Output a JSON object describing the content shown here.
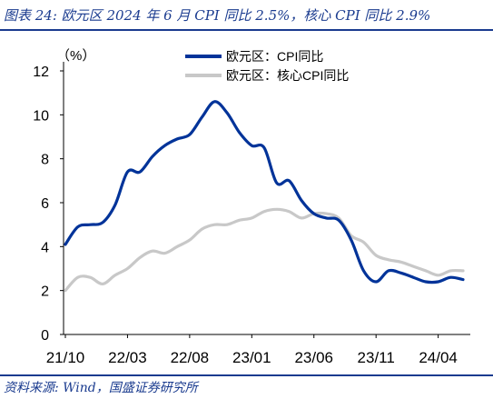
{
  "title": "图表 24: 欧元区 2024 年 6 月 CPI 同比 2.5%，核心 CPI 同比 2.9%",
  "source": "资料来源: Wind，国盛证券研究所",
  "colors": {
    "accent": "#1a3b8f",
    "series_cpi": "#003399",
    "series_core": "#c8c8c8"
  },
  "chart_data": {
    "type": "line",
    "ylabel": "（%）",
    "ylim": [
      0,
      12
    ],
    "yticks": [
      "0",
      "2",
      "4",
      "6",
      "8",
      "10",
      "12"
    ],
    "xticks": [
      "21/10",
      "22/03",
      "22/08",
      "23/01",
      "23/06",
      "23/11",
      "24/04"
    ],
    "legend_position": "top-right",
    "grid": false,
    "x": [
      "21/10",
      "21/11",
      "21/12",
      "22/01",
      "22/02",
      "22/03",
      "22/04",
      "22/05",
      "22/06",
      "22/07",
      "22/08",
      "22/09",
      "22/10",
      "22/11",
      "22/12",
      "23/01",
      "23/02",
      "23/03",
      "23/04",
      "23/05",
      "23/06",
      "23/07",
      "23/08",
      "23/09",
      "23/10",
      "23/11",
      "23/12",
      "24/01",
      "24/02",
      "24/03",
      "24/04",
      "24/05",
      "24/06"
    ],
    "series": [
      {
        "name": "欧元区：CPI同比",
        "values": [
          4.1,
          4.9,
          5.0,
          5.1,
          5.9,
          7.4,
          7.4,
          8.1,
          8.6,
          8.9,
          9.1,
          9.9,
          10.6,
          10.1,
          9.2,
          8.6,
          8.5,
          6.9,
          7.0,
          6.1,
          5.5,
          5.3,
          5.2,
          4.3,
          2.9,
          2.4,
          2.9,
          2.8,
          2.6,
          2.4,
          2.4,
          2.6,
          2.5
        ]
      },
      {
        "name": "欧元区：核心CPI同比",
        "values": [
          2.0,
          2.6,
          2.6,
          2.3,
          2.7,
          3.0,
          3.5,
          3.8,
          3.7,
          4.0,
          4.3,
          4.8,
          5.0,
          5.0,
          5.2,
          5.3,
          5.6,
          5.7,
          5.6,
          5.3,
          5.5,
          5.5,
          5.3,
          4.5,
          4.2,
          3.6,
          3.4,
          3.3,
          3.1,
          2.9,
          2.7,
          2.9,
          2.9
        ]
      }
    ]
  }
}
